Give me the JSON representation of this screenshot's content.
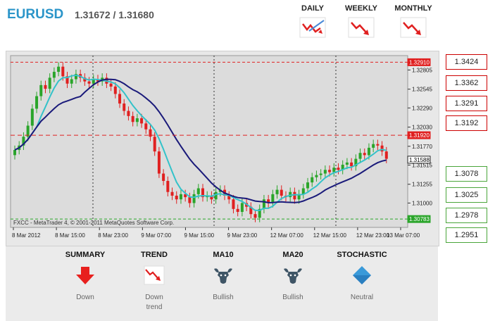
{
  "header": {
    "pair": "EURUSD",
    "quote": "1.31672 / 1.31680"
  },
  "periods": [
    {
      "label": "DAILY",
      "icon": "downtrend-chart-icon-highlighted"
    },
    {
      "label": "WEEKLY",
      "icon": "downtrend-chart-icon"
    },
    {
      "label": "MONTHLY",
      "icon": "downtrend-chart-icon"
    }
  ],
  "chart": {
    "watermark": "FXCC - MetaTrader 4, © 2001-2011 MetaQuotes Software Corp.",
    "price_ticks": [
      "1.32805",
      "1.32545",
      "1.32290",
      "1.32030",
      "1.31770",
      "1.31515",
      "1.31255",
      "1.31000"
    ],
    "time_labels": [
      "8 Mar 2012",
      "8 Mar 15:00",
      "8 Mar 23:00",
      "9 Mar 07:00",
      "9 Mar 15:00",
      "9 Mar 23:00",
      "12 Mar 07:00",
      "12 Mar 15:00",
      "12 Mar 23:00",
      "13 Mar 07:00"
    ],
    "markers": {
      "top": "1.32910",
      "mid": "1.31920",
      "current": "1.31588",
      "bottom": "1.30783"
    },
    "colors": {
      "bull": "#2aa52a",
      "bear": "#e02020",
      "ma_fast": "#33c2c9",
      "ma_slow": "#1a1a7a",
      "background": "#e8e8e8"
    }
  },
  "levels": {
    "resistance": [
      "1.3424",
      "1.3362",
      "1.3291",
      "1.3192"
    ],
    "support": [
      "1.3078",
      "1.3025",
      "1.2978",
      "1.2951"
    ]
  },
  "indicators": [
    {
      "title": "SUMMARY",
      "value": "Down",
      "icon": "down-arrow-icon"
    },
    {
      "title": "TREND",
      "value": "Down trend",
      "icon": "downtrend-chart-icon"
    },
    {
      "title": "MA10",
      "value": "Bullish",
      "icon": "bull-icon"
    },
    {
      "title": "MA20",
      "value": "Bullish",
      "icon": "bull-icon"
    },
    {
      "title": "STOCHASTIC",
      "value": "Neutral",
      "icon": "neutral-diamond-icon"
    }
  ]
}
